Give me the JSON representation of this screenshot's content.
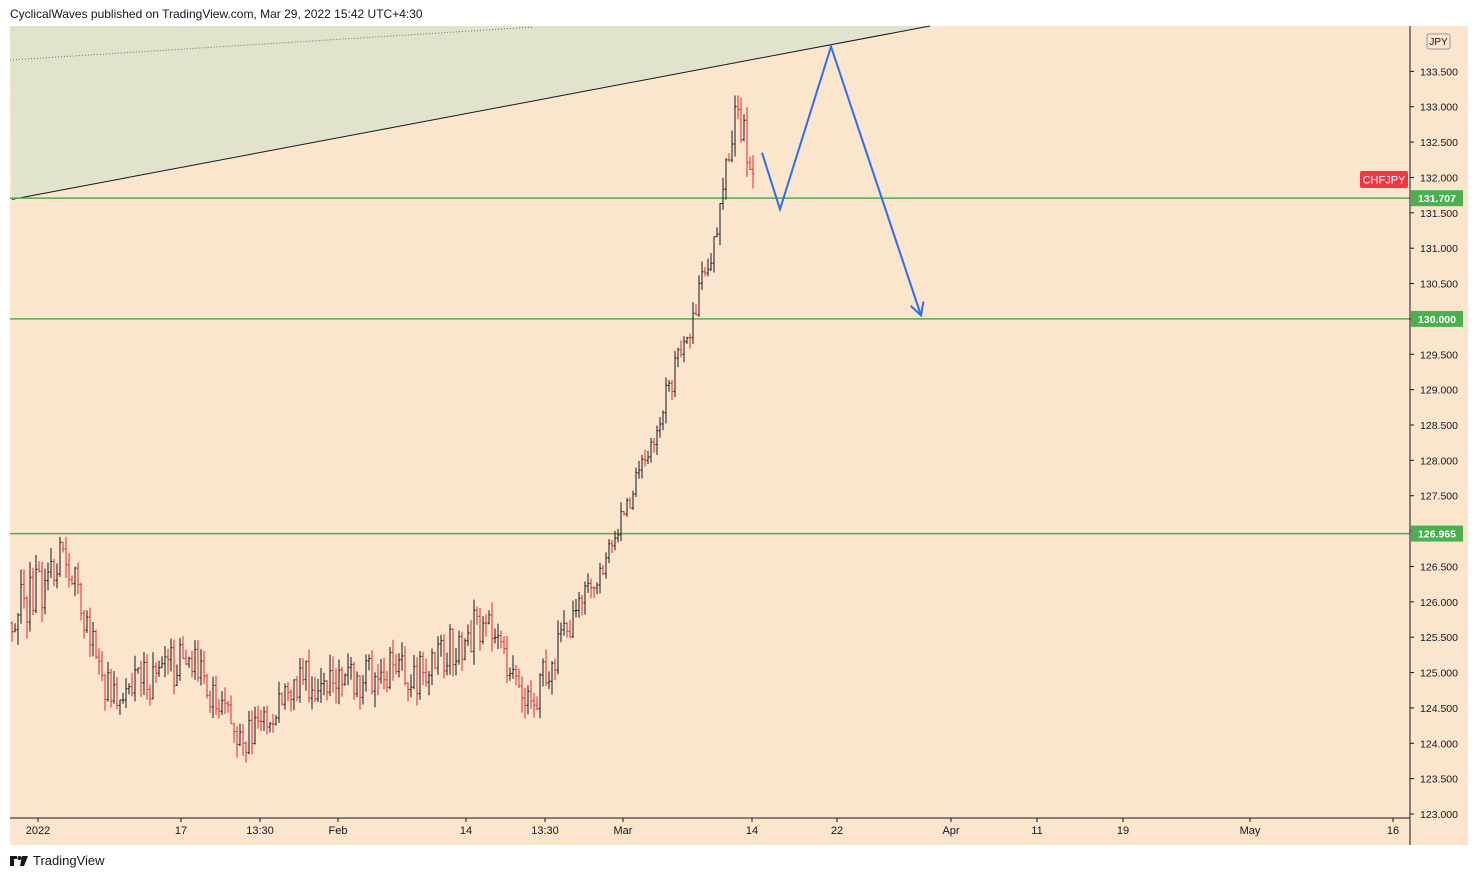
{
  "header": {
    "publisher": "CyclicalWaves",
    "publish_text": "CyclicalWaves published on TradingView.com, Mar 29, 2022 15:42 UTC+4:30"
  },
  "footer": {
    "brand": "TradingView",
    "brand_icon": "tradingview-logo-icon"
  },
  "colors": {
    "background": "#fbe5cc",
    "wedge_fill": "#e1e3cc",
    "up_candle": "#131722",
    "down_candle": "#e0262b",
    "level_line": "#4caf50",
    "projection": "#2e6fe6",
    "symbol_badge": "#f23645"
  },
  "chart_data": {
    "type": "candlestick",
    "symbol": "CHFJPY",
    "currency": "JPY",
    "x_ticks": [
      "2022",
      "17",
      "13:30",
      "Feb",
      "14",
      "13:30",
      "Mar",
      "14",
      "22",
      "Apr",
      "11",
      "19",
      "May",
      "16"
    ],
    "y_ticks": [
      "133.500",
      "133.000",
      "132.500",
      "132.000",
      "131.500",
      "131.000",
      "130.500",
      "130.000",
      "129.500",
      "129.000",
      "128.500",
      "128.000",
      "127.500",
      "127.000",
      "126.500",
      "126.000",
      "125.500",
      "125.000",
      "124.500",
      "124.000",
      "123.500",
      "123.000"
    ],
    "ylim": [
      123.0,
      134.0
    ],
    "price_labels": {
      "symbol_label": "CHFJPY",
      "levels": [
        "131.707",
        "130.000",
        "126.965"
      ]
    },
    "levels": [
      131.707,
      130.0,
      126.965
    ],
    "trendline": {
      "from": {
        "candle": 0,
        "price": 131.69
      },
      "to": {
        "candle": 306,
        "price": 134.29
      }
    },
    "projection_path": [
      {
        "candle": 250,
        "price": 132.35
      },
      {
        "candle": 256,
        "price": 131.55
      },
      {
        "candle": 273,
        "price": 133.85
      },
      {
        "candle": 303,
        "price": 130.05
      }
    ],
    "segments": [
      {
        "candles": 12,
        "start": 125.7,
        "end": 126.3,
        "amp": 0.7
      },
      {
        "candles": 6,
        "start": 126.3,
        "end": 126.75,
        "amp": 0.55
      },
      {
        "candles": 16,
        "start": 126.75,
        "end": 124.6,
        "amp": 0.55
      },
      {
        "candles": 26,
        "start": 124.6,
        "end": 125.2,
        "amp": 0.6
      },
      {
        "candles": 18,
        "start": 125.2,
        "end": 124.0,
        "amp": 0.55
      },
      {
        "candles": 20,
        "start": 124.0,
        "end": 124.9,
        "amp": 0.5
      },
      {
        "candles": 40,
        "start": 124.9,
        "end": 125.0,
        "amp": 0.65
      },
      {
        "candles": 20,
        "start": 125.0,
        "end": 125.7,
        "amp": 0.6
      },
      {
        "candles": 16,
        "start": 125.7,
        "end": 124.6,
        "amp": 0.6
      },
      {
        "candles": 20,
        "start": 124.6,
        "end": 126.2,
        "amp": 0.55
      },
      {
        "candles": 8,
        "start": 126.2,
        "end": 126.9,
        "amp": 0.4
      },
      {
        "candles": 10,
        "start": 126.9,
        "end": 128.0,
        "amp": 0.4
      },
      {
        "candles": 12,
        "start": 128.0,
        "end": 129.5,
        "amp": 0.45
      },
      {
        "candles": 12,
        "start": 129.5,
        "end": 131.2,
        "amp": 0.45
      },
      {
        "candles": 6,
        "start": 131.2,
        "end": 133.0,
        "amp": 0.6
      },
      {
        "candles": 6,
        "start": 133.0,
        "end": 132.05,
        "amp": 0.6
      }
    ]
  }
}
